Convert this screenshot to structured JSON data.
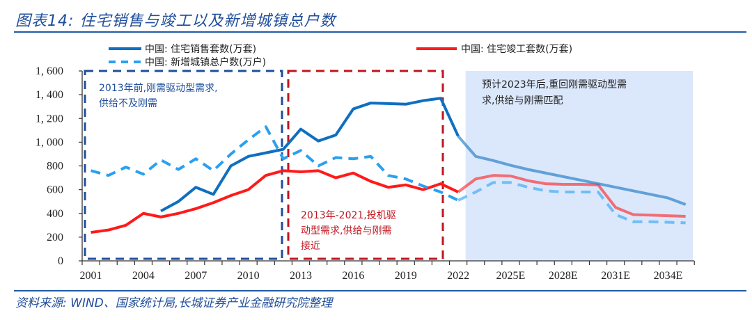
{
  "header": {
    "title": "图表14:  住宅销售与竣工以及新增城镇总户数"
  },
  "footer": {
    "source": "资料来源: WIND、国家统计局,长城证券产业金融研究院整理"
  },
  "colors": {
    "sales": "#0f6fc0",
    "completion": "#ff1a1a",
    "households": "#2aa0f0",
    "forecast_bg": "#dbe8fc",
    "box1": "#1f4e9c",
    "box2": "#c0141e",
    "axis": "#333333"
  },
  "annotations": {
    "box1": [
      "2013年前,刚需驱动型需求,",
      "供给不及刚需"
    ],
    "box2": [
      "2013年-2021,投机驱",
      "动型需求,供给与刚需",
      "接近"
    ],
    "forecast": [
      "预计2023年后,重回刚需驱动型需",
      "求,供给与刚需匹配"
    ]
  },
  "chart_data": {
    "type": "line",
    "title": "住宅销售与竣工以及新增城镇总户数",
    "xlabel": "",
    "ylabel": "",
    "ylim": [
      0,
      1600
    ],
    "yticks": [
      0,
      200,
      400,
      600,
      800,
      1000,
      1200,
      1400,
      1600
    ],
    "ytick_labels": [
      "0",
      "200",
      "400",
      "600",
      "800",
      "1, 000",
      "1, 200",
      "1, 400",
      "1, 600"
    ],
    "x": [
      2001,
      2002,
      2003,
      2004,
      2005,
      2006,
      2007,
      2008,
      2009,
      2010,
      2011,
      2012,
      2013,
      2014,
      2015,
      2016,
      2017,
      2018,
      2019,
      2020,
      2021,
      2022,
      2023,
      2024,
      2025,
      2026,
      2027,
      2028,
      2029,
      2030,
      2031,
      2032,
      2033,
      2034,
      2035
    ],
    "xtick_labels": [
      "2001",
      "2004",
      "2007",
      "2010",
      "2013",
      "2016",
      "2019",
      "2022",
      "2025E",
      "2028E",
      "2031E",
      "2034E"
    ],
    "xtick_label_years": [
      2001,
      2004,
      2007,
      2010,
      2013,
      2016,
      2019,
      2022,
      2025,
      2028,
      2031,
      2034
    ],
    "forecast_start": 2023,
    "legend_position": "top",
    "series": [
      {
        "name": "中国: 住宅销售套数(万套)",
        "style": "solid",
        "values": [
          null,
          null,
          null,
          null,
          420,
          500,
          620,
          560,
          800,
          880,
          910,
          940,
          1110,
          1010,
          1060,
          1280,
          1330,
          1325,
          1320,
          1350,
          1370,
          1050,
          880,
          845,
          805,
          770,
          740,
          710,
          680,
          650,
          620,
          590,
          560,
          530,
          475
        ]
      },
      {
        "name": "中国: 住宅竣工套数(万套)",
        "style": "solid",
        "values": [
          240,
          260,
          300,
          400,
          370,
          400,
          440,
          490,
          550,
          600,
          720,
          760,
          750,
          760,
          700,
          740,
          670,
          620,
          640,
          600,
          650,
          580,
          690,
          720,
          715,
          675,
          650,
          645,
          645,
          640,
          450,
          390,
          385,
          380,
          375
        ]
      },
      {
        "name": "中国: 新增城镇总户数(万户)",
        "style": "dashed",
        "values": [
          760,
          720,
          790,
          730,
          850,
          770,
          860,
          760,
          900,
          1020,
          1130,
          860,
          930,
          800,
          870,
          860,
          880,
          720,
          690,
          630,
          580,
          510,
          580,
          660,
          660,
          620,
          590,
          580,
          580,
          580,
          390,
          330,
          330,
          325,
          320
        ]
      }
    ]
  }
}
